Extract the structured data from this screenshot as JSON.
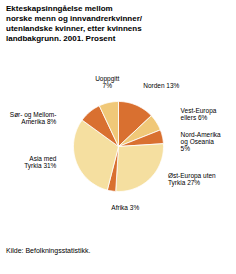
{
  "chart_data": {
    "type": "pie",
    "title": "Ekteskapsinngåelse mellom\nnorske menn og innvandrerkvinner/\nutenlandske kvinner, etter kvinnens\nlandbakgrunn. 2001. Prosent",
    "source": "Kilde: Befolkningsstatistikk.",
    "categories": [
      "Norden 13%",
      "Vest-Europa\nellers 6%",
      "Nord-Amerika\nog Oseania\n5%",
      "Øst-Europa uten\nTyrkia 27%",
      "Afrika 3%",
      "Asia med\nTyrkia 31%",
      "Sør- og Mellom-\nAmerika 8%",
      "Uoppgitt\n7%"
    ],
    "values": [
      13,
      6,
      5,
      27,
      3,
      31,
      8,
      7
    ],
    "colors": [
      "#D97030",
      "#F0C878",
      "#D97030",
      "#F5DFA0",
      "#D97030",
      "#F5DFA0",
      "#D97030",
      "#F0C878"
    ]
  }
}
